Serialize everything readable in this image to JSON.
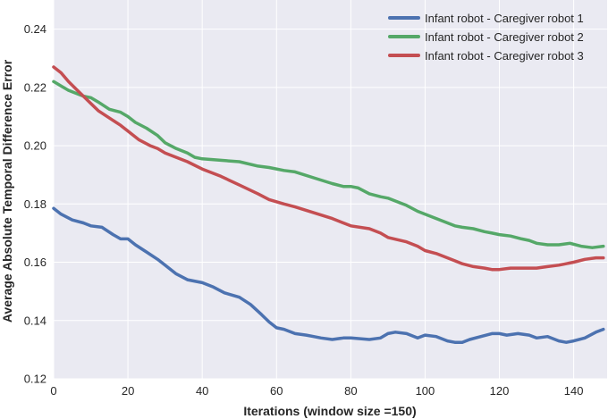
{
  "chart_data": {
    "type": "line",
    "title": "",
    "xlabel": "Iterations (window size =150)",
    "ylabel": "Average Absolute Temporal Difference Error",
    "xlim": [
      0,
      149
    ],
    "ylim": [
      0.12,
      0.25
    ],
    "xticks": [
      0,
      20,
      40,
      60,
      80,
      100,
      120,
      140
    ],
    "yticks": [
      0.12,
      0.14,
      0.16,
      0.18,
      0.2,
      0.22,
      0.24
    ],
    "xtick_labels": [
      "0",
      "20",
      "40",
      "60",
      "80",
      "100",
      "120",
      "140"
    ],
    "ytick_labels": [
      "0.12",
      "0.14",
      "0.16",
      "0.18",
      "0.20",
      "0.22",
      "0.24"
    ],
    "grid": true,
    "legend_position": "top-right",
    "series": [
      {
        "name": "Infant robot - Caregiver robot 1",
        "color": "#4c72b0",
        "x": [
          0,
          2,
          5,
          8,
          10,
          13,
          16,
          18,
          20,
          22,
          25,
          28,
          30,
          33,
          36,
          40,
          43,
          46,
          50,
          53,
          56,
          58,
          60,
          62,
          65,
          68,
          70,
          72,
          75,
          78,
          80,
          85,
          88,
          90,
          92,
          95,
          98,
          100,
          103,
          106,
          108,
          110,
          112,
          115,
          118,
          120,
          122,
          125,
          128,
          130,
          133,
          136,
          138,
          140,
          143,
          146,
          148
        ],
        "y": [
          0.1785,
          0.1765,
          0.1745,
          0.1735,
          0.1725,
          0.172,
          0.1695,
          0.168,
          0.168,
          0.166,
          0.1635,
          0.161,
          0.159,
          0.156,
          0.154,
          0.153,
          0.1515,
          0.1495,
          0.148,
          0.1455,
          0.142,
          0.1395,
          0.1375,
          0.137,
          0.1355,
          0.135,
          0.1345,
          0.134,
          0.1335,
          0.134,
          0.134,
          0.1335,
          0.134,
          0.1355,
          0.136,
          0.1355,
          0.134,
          0.135,
          0.1345,
          0.133,
          0.1325,
          0.1325,
          0.1335,
          0.1345,
          0.1355,
          0.1355,
          0.135,
          0.1355,
          0.135,
          0.134,
          0.1345,
          0.133,
          0.1325,
          0.133,
          0.134,
          0.136,
          0.137
        ]
      },
      {
        "name": "Infant robot - Caregiver robot 2",
        "color": "#55a868",
        "x": [
          0,
          2,
          4,
          6,
          8,
          10,
          12,
          15,
          18,
          20,
          22,
          25,
          28,
          30,
          33,
          36,
          38,
          40,
          45,
          50,
          55,
          58,
          62,
          65,
          70,
          75,
          78,
          80,
          82,
          85,
          88,
          90,
          95,
          98,
          100,
          103,
          106,
          108,
          110,
          113,
          116,
          118,
          120,
          123,
          126,
          128,
          130,
          133,
          136,
          139,
          142,
          145,
          148
        ],
        "y": [
          0.222,
          0.2205,
          0.219,
          0.218,
          0.217,
          0.2165,
          0.215,
          0.2125,
          0.2115,
          0.21,
          0.208,
          0.206,
          0.2035,
          0.201,
          0.199,
          0.1975,
          0.196,
          0.1955,
          0.195,
          0.1945,
          0.193,
          0.1925,
          0.1915,
          0.191,
          0.189,
          0.187,
          0.186,
          0.186,
          0.1855,
          0.1835,
          0.1825,
          0.182,
          0.1795,
          0.1775,
          0.1765,
          0.175,
          0.1735,
          0.1725,
          0.172,
          0.1715,
          0.1705,
          0.17,
          0.1695,
          0.169,
          0.168,
          0.1675,
          0.1665,
          0.166,
          0.166,
          0.1665,
          0.1655,
          0.165,
          0.1655
        ]
      },
      {
        "name": "Infant robot - Caregiver robot 3",
        "color": "#c44e52",
        "x": [
          0,
          2,
          4,
          6,
          8,
          10,
          12,
          15,
          18,
          20,
          23,
          26,
          28,
          30,
          33,
          36,
          40,
          45,
          50,
          55,
          58,
          62,
          65,
          70,
          75,
          80,
          85,
          88,
          90,
          95,
          98,
          100,
          103,
          106,
          108,
          110,
          113,
          116,
          118,
          120,
          123,
          126,
          130,
          133,
          136,
          140,
          143,
          146,
          148
        ],
        "y": [
          0.227,
          0.225,
          0.222,
          0.2195,
          0.217,
          0.2145,
          0.212,
          0.2095,
          0.207,
          0.205,
          0.202,
          0.2,
          0.199,
          0.1975,
          0.196,
          0.1945,
          0.192,
          0.1895,
          0.1865,
          0.1835,
          0.1815,
          0.18,
          0.179,
          0.177,
          0.175,
          0.1725,
          0.1715,
          0.17,
          0.1685,
          0.167,
          0.1655,
          0.164,
          0.163,
          0.1615,
          0.1605,
          0.1595,
          0.1585,
          0.158,
          0.1575,
          0.1575,
          0.158,
          0.158,
          0.158,
          0.1585,
          0.159,
          0.16,
          0.161,
          0.1615,
          0.1615
        ]
      }
    ]
  }
}
